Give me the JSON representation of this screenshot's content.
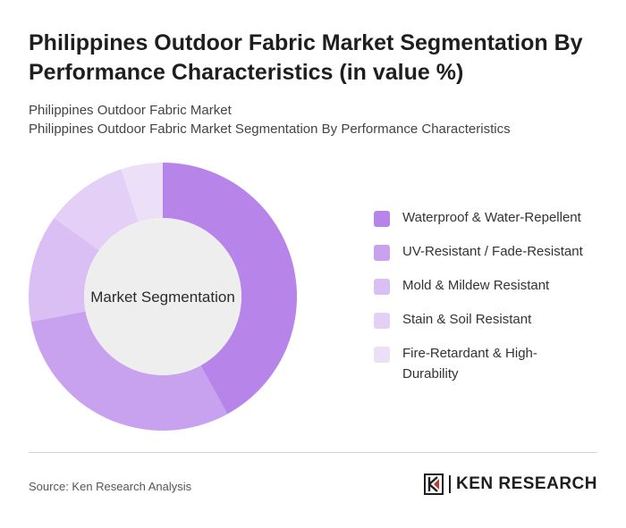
{
  "title": "Philippines Outdoor Fabric Market Segmentation By Performance Characteristics (in value %)",
  "subtitle_line1": "Philippines Outdoor Fabric Market",
  "subtitle_line2": "Philippines Outdoor Fabric Market Segmentation By Performance Characteristics",
  "center_label": "Market Segmentation",
  "source": "Source: Ken Research Analysis",
  "brand": "KEN RESEARCH",
  "chart_data": {
    "type": "pie",
    "donut": true,
    "legend_position": "right",
    "categories": [
      "Waterproof & Water-Repellent",
      "UV-Resistant / Fade-Resistant",
      "Mold & Mildew Resistant",
      "Stain & Soil Resistant",
      "Fire-Retardant & High-Durability"
    ],
    "values": [
      42,
      30,
      13,
      10,
      5
    ],
    "colors": [
      "#b784ea",
      "#c9a2ef",
      "#d9bff4",
      "#e4d0f6",
      "#ece0f9"
    ]
  }
}
